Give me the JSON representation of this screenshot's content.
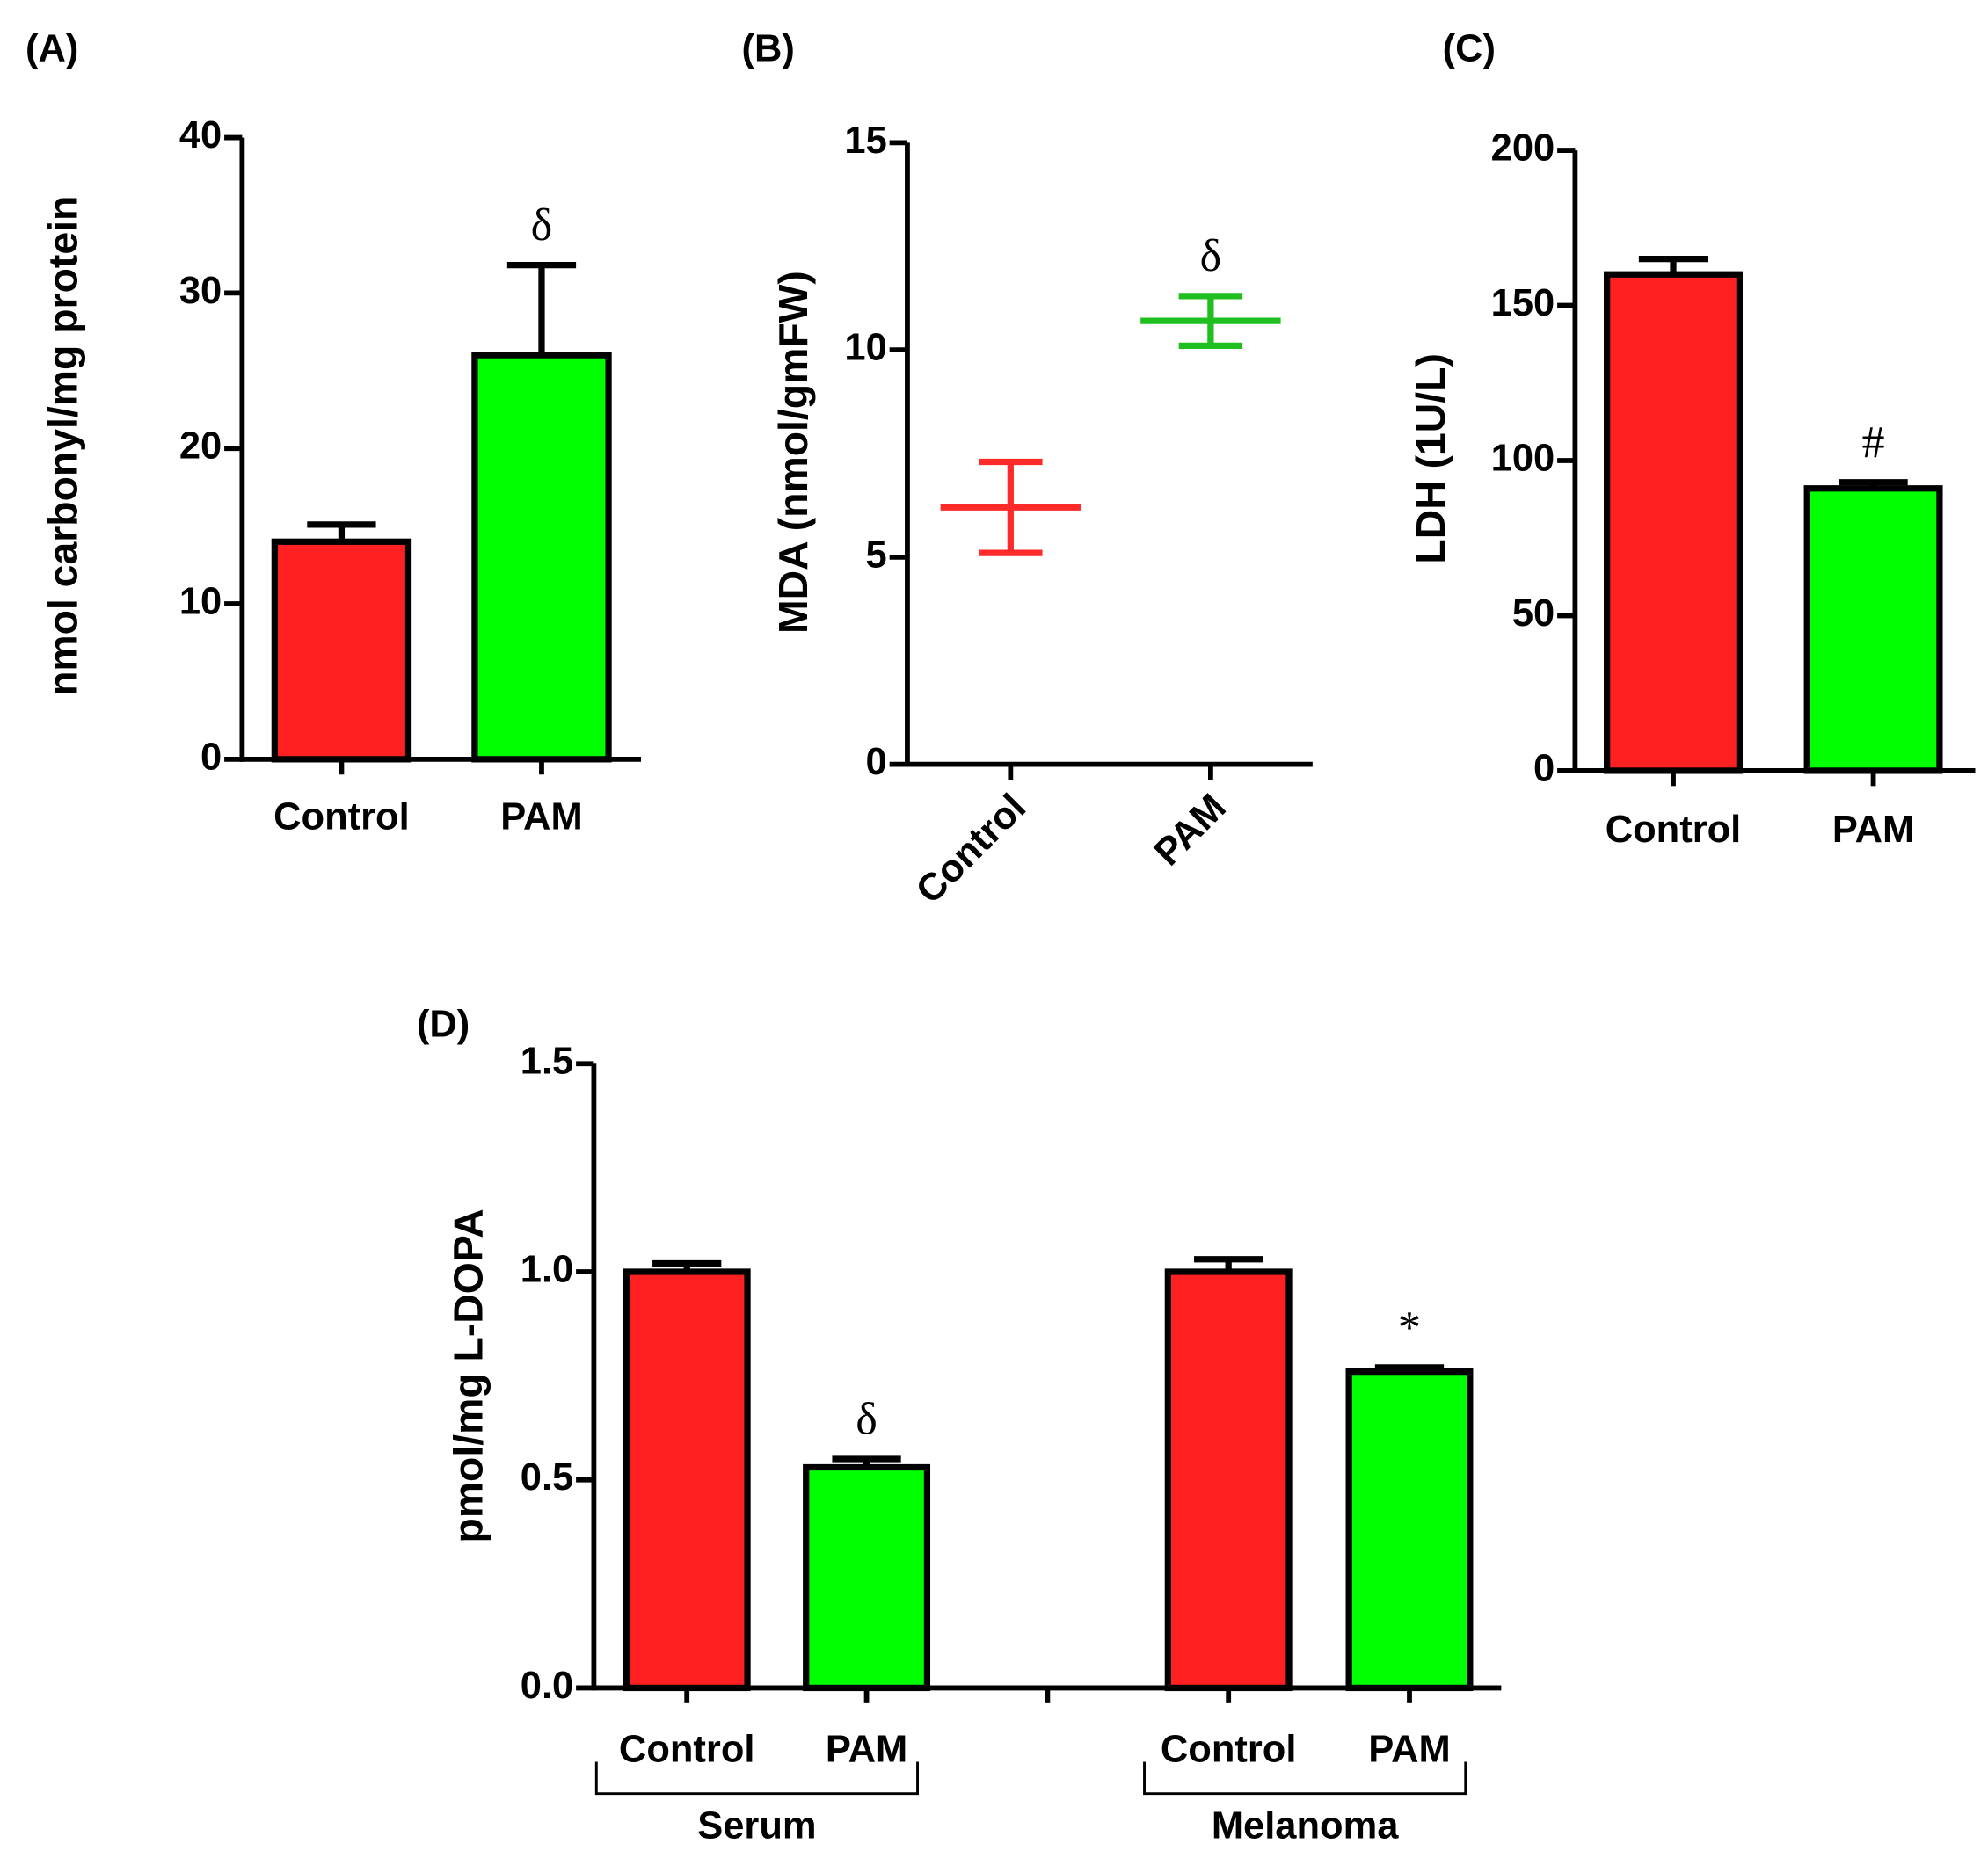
{
  "chart_data": [
    {
      "type": "bar",
      "panel": "(A)",
      "y_label": "nmol carbonyl/mg protein",
      "categories": [
        "Control",
        "PAM"
      ],
      "values": [
        14,
        26
      ],
      "errors": [
        1.1,
        5.8
      ],
      "colors": [
        "#ff2121",
        "#00ff00"
      ],
      "annotations": [
        null,
        "δ"
      ],
      "ylim": [
        0,
        40
      ],
      "yticks": [
        0,
        10,
        20,
        30,
        40
      ]
    },
    {
      "type": "mean-error",
      "panel": "(B)",
      "y_label": "MDA (nmol/gmFW)",
      "categories": [
        "Control",
        "PAM"
      ],
      "values": [
        6.2,
        10.7
      ],
      "errors": [
        1.1,
        0.6
      ],
      "colors": [
        "#ff2a2a",
        "#1fbf1f"
      ],
      "annotations": [
        null,
        "δ"
      ],
      "ylim": [
        0,
        15
      ],
      "yticks": [
        0,
        5,
        10,
        15
      ]
    },
    {
      "type": "bar",
      "panel": "(C)",
      "y_label": "LDH (1U/L)",
      "categories": [
        "Control",
        "PAM"
      ],
      "values": [
        160,
        91
      ],
      "errors": [
        5,
        2
      ],
      "colors": [
        "#ff2121",
        "#00ff00"
      ],
      "annotations": [
        null,
        "#"
      ],
      "ylim": [
        0,
        200
      ],
      "yticks": [
        0,
        50,
        100,
        150,
        200
      ]
    },
    {
      "type": "grouped-bar",
      "panel": "(D)",
      "y_label": "pmol/mg L-DOPA",
      "groups": [
        {
          "name": "Serum",
          "categories": [
            "Control",
            "PAM"
          ],
          "values": [
            1.0,
            0.53
          ],
          "errors": [
            0.02,
            0.02
          ],
          "annotations": [
            null,
            "δ"
          ]
        },
        {
          "name": "Melanoma",
          "categories": [
            "Control",
            "PAM"
          ],
          "values": [
            1.0,
            0.76
          ],
          "errors": [
            0.03,
            0.01
          ],
          "annotations": [
            null,
            "*"
          ]
        }
      ],
      "colors": [
        "#ff2121",
        "#00ff00"
      ],
      "ylim": [
        0,
        1.5
      ],
      "yticks": [
        {
          "value": 0,
          "label": "0.0"
        },
        0.5,
        {
          "value": 1,
          "label": "1.0"
        },
        1.5
      ]
    }
  ]
}
